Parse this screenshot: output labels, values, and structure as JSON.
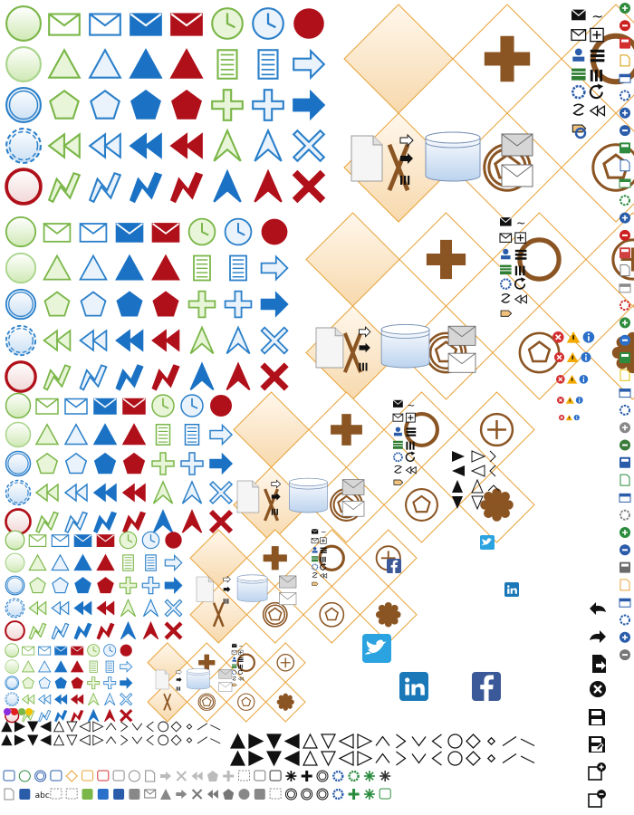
{
  "palette": {
    "green_stroke": "#7ab648",
    "green_fill": "#e8f5d8",
    "blue_stroke": "#2a7fc9",
    "blue_fill": "#1b72c4",
    "red_fill": "#b0101a",
    "orange_stroke": "#e8a33a",
    "orange_fill": "#fbe9cf",
    "brown": "#8b5523",
    "gray": "#6b6b6b",
    "black": "#111111"
  },
  "text_glyphs": {
    "abc_label": "abc",
    "tilde": "~"
  },
  "icon_names": [
    "start-event-icon",
    "message-icon",
    "timer-icon",
    "signal-icon",
    "conditional-icon",
    "escalation-icon",
    "link-icon",
    "compensation-icon",
    "error-icon",
    "cancel-icon",
    "terminate-icon",
    "exclusive-gateway-icon",
    "parallel-gateway-icon",
    "inclusive-gateway-icon",
    "complex-gateway-icon",
    "event-gateway-icon",
    "data-object-icon",
    "data-store-icon",
    "undo-icon",
    "redo-icon",
    "export-icon",
    "delete-icon",
    "save-icon",
    "save-as-icon",
    "twitter-icon",
    "facebook-icon",
    "linkedin-icon"
  ]
}
